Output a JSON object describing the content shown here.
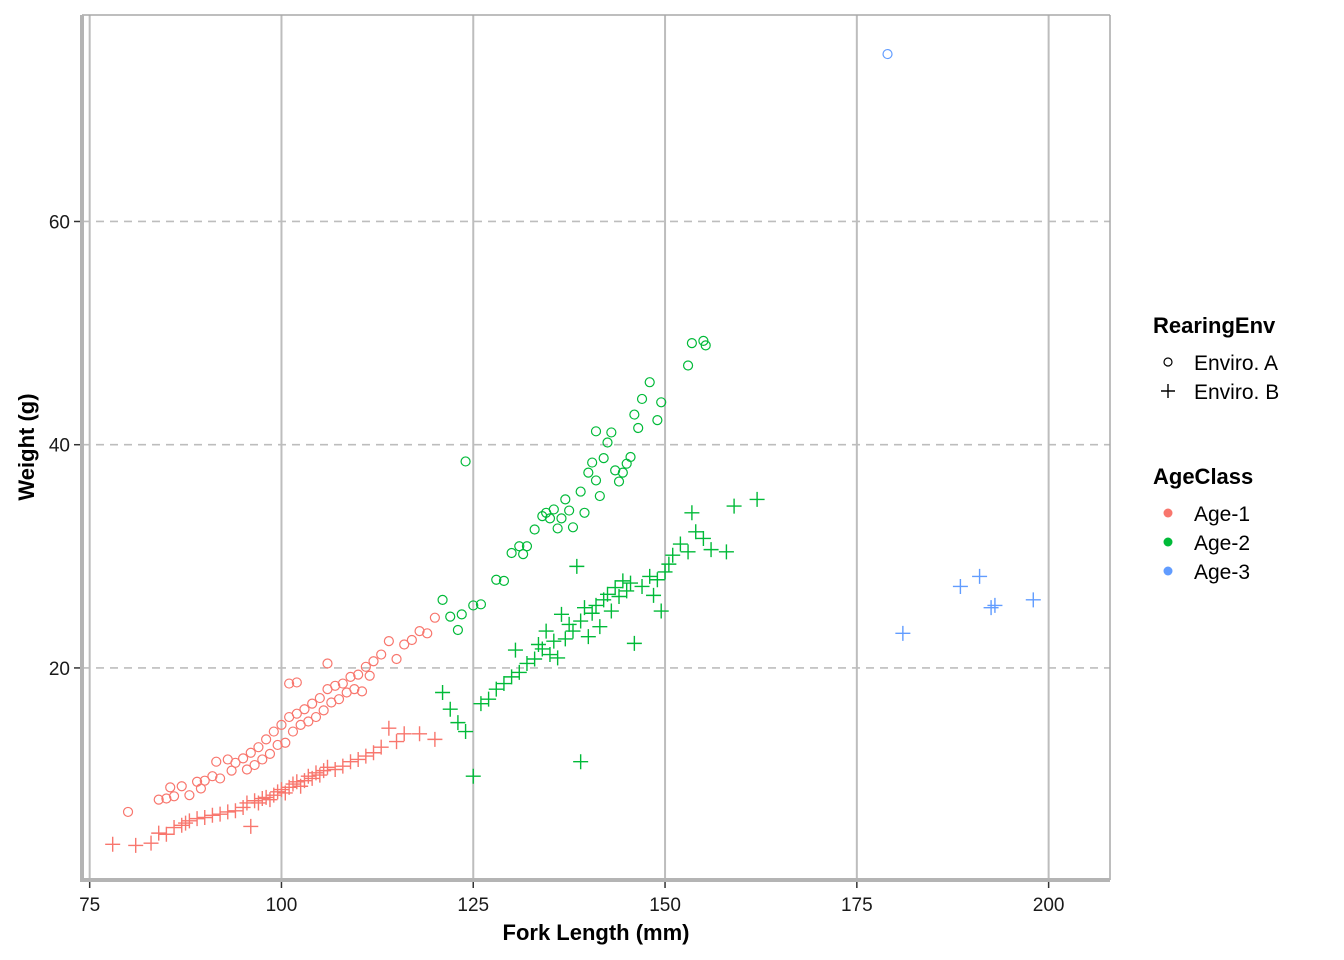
{
  "chart_data": {
    "type": "scatter",
    "title": "",
    "xlabel": "Fork Length (mm)",
    "ylabel": "Weight (g)",
    "xlim": [
      74,
      208
    ],
    "ylim": [
      1,
      78.5
    ],
    "x_ticks": [
      75,
      100,
      125,
      150,
      175,
      200
    ],
    "y_ticks": [
      20,
      40,
      60
    ],
    "grid": {
      "vertical": "solid",
      "horizontal": "dashed"
    },
    "legend_position": "right",
    "shape_legend": {
      "title": "RearingEnv",
      "items": [
        {
          "label": "Enviro. A",
          "shape": "circle"
        },
        {
          "label": "Enviro. B",
          "shape": "plus"
        }
      ]
    },
    "color_legend": {
      "title": "AgeClass",
      "items": [
        {
          "label": "Age-1",
          "color": "#F8766D"
        },
        {
          "label": "Age-2",
          "color": "#00BA38"
        },
        {
          "label": "Age-3",
          "color": "#619CFF"
        }
      ]
    },
    "series": [
      {
        "name": "Age-1",
        "env": "Enviro. A",
        "color": "#F8766D",
        "shape": "circle",
        "points": [
          [
            80,
            7.1
          ],
          [
            84,
            8.2
          ],
          [
            85,
            8.3
          ],
          [
            85.5,
            9.3
          ],
          [
            86,
            8.5
          ],
          [
            87,
            9.4
          ],
          [
            88,
            8.6
          ],
          [
            89,
            9.8
          ],
          [
            89.5,
            9.2
          ],
          [
            90,
            9.9
          ],
          [
            91,
            10.3
          ],
          [
            91.5,
            11.6
          ],
          [
            92,
            10.1
          ],
          [
            93,
            11.8
          ],
          [
            93.5,
            10.8
          ],
          [
            94,
            11.5
          ],
          [
            95,
            11.9
          ],
          [
            95.5,
            10.9
          ],
          [
            96,
            12.4
          ],
          [
            96.5,
            11.3
          ],
          [
            97,
            12.9
          ],
          [
            97.5,
            11.8
          ],
          [
            98,
            13.6
          ],
          [
            98.5,
            12.3
          ],
          [
            99,
            14.3
          ],
          [
            99.5,
            13.1
          ],
          [
            100,
            14.9
          ],
          [
            100.5,
            13.3
          ],
          [
            101,
            15.6
          ],
          [
            101,
            18.6
          ],
          [
            101.5,
            14.3
          ],
          [
            102,
            15.9
          ],
          [
            102,
            18.7
          ],
          [
            102.5,
            14.9
          ],
          [
            103,
            16.3
          ],
          [
            103.5,
            15.2
          ],
          [
            104,
            16.8
          ],
          [
            104.5,
            15.6
          ],
          [
            105,
            17.3
          ],
          [
            105.5,
            16.2
          ],
          [
            106,
            18.1
          ],
          [
            106,
            20.4
          ],
          [
            106.5,
            16.9
          ],
          [
            107,
            18.4
          ],
          [
            107.5,
            17.2
          ],
          [
            108,
            18.6
          ],
          [
            108.5,
            17.8
          ],
          [
            109,
            19.2
          ],
          [
            109.5,
            18.1
          ],
          [
            110,
            19.4
          ],
          [
            110.5,
            17.9
          ],
          [
            111,
            20.1
          ],
          [
            111.5,
            19.3
          ],
          [
            112,
            20.6
          ],
          [
            113,
            21.2
          ],
          [
            114,
            22.4
          ],
          [
            115,
            20.8
          ],
          [
            116,
            22.1
          ],
          [
            117,
            22.5
          ],
          [
            118,
            23.3
          ],
          [
            119,
            23.1
          ],
          [
            120,
            24.5
          ]
        ]
      },
      {
        "name": "Age-1",
        "env": "Enviro. B",
        "color": "#F8766D",
        "shape": "plus",
        "points": [
          [
            78,
            4.2
          ],
          [
            81,
            4.1
          ],
          [
            83,
            4.3
          ],
          [
            84,
            5.2
          ],
          [
            85,
            5.1
          ],
          [
            86,
            5.7
          ],
          [
            87,
            5.9
          ],
          [
            87.5,
            6.1
          ],
          [
            88,
            6.3
          ],
          [
            89,
            6.5
          ],
          [
            90,
            6.6
          ],
          [
            91,
            6.8
          ],
          [
            92,
            6.9
          ],
          [
            93,
            7.1
          ],
          [
            94,
            7.2
          ],
          [
            95,
            7.5
          ],
          [
            95.5,
            7.9
          ],
          [
            96,
            5.8
          ],
          [
            96.5,
            8.1
          ],
          [
            97,
            7.9
          ],
          [
            97.5,
            8.3
          ],
          [
            98,
            8.4
          ],
          [
            98.5,
            8.2
          ],
          [
            99,
            8.6
          ],
          [
            99.5,
            8.9
          ],
          [
            100,
            9.1
          ],
          [
            100.5,
            8.8
          ],
          [
            101,
            9.3
          ],
          [
            101.5,
            9.6
          ],
          [
            102,
            9.8
          ],
          [
            102.5,
            9.4
          ],
          [
            103,
            9.9
          ],
          [
            103.5,
            10.3
          ],
          [
            104,
            10.1
          ],
          [
            104.5,
            10.6
          ],
          [
            105,
            10.4
          ],
          [
            105.5,
            10.8
          ],
          [
            106,
            11.1
          ],
          [
            107,
            10.9
          ],
          [
            108,
            11.2
          ],
          [
            109,
            11.6
          ],
          [
            110,
            11.8
          ],
          [
            111,
            12.1
          ],
          [
            112,
            12.4
          ],
          [
            113,
            12.9
          ],
          [
            114,
            14.6
          ],
          [
            115,
            13.4
          ],
          [
            116,
            14.1
          ],
          [
            118,
            14.1
          ],
          [
            120,
            13.6
          ]
        ]
      },
      {
        "name": "Age-2",
        "env": "Enviro. A",
        "color": "#00BA38",
        "shape": "circle",
        "points": [
          [
            121,
            26.1
          ],
          [
            122,
            24.6
          ],
          [
            123,
            23.4
          ],
          [
            123.5,
            24.8
          ],
          [
            124,
            38.5
          ],
          [
            125,
            25.6
          ],
          [
            126,
            25.7
          ],
          [
            128,
            27.9
          ],
          [
            129,
            27.8
          ],
          [
            130,
            30.3
          ],
          [
            131,
            30.9
          ],
          [
            131.5,
            30.2
          ],
          [
            132,
            30.9
          ],
          [
            133,
            32.4
          ],
          [
            134,
            33.6
          ],
          [
            134.5,
            33.9
          ],
          [
            135,
            33.4
          ],
          [
            135.5,
            34.2
          ],
          [
            136,
            32.5
          ],
          [
            136.5,
            33.4
          ],
          [
            137,
            35.1
          ],
          [
            137.5,
            34.1
          ],
          [
            138,
            32.6
          ],
          [
            139,
            35.8
          ],
          [
            139.5,
            33.9
          ],
          [
            140,
            37.5
          ],
          [
            140.5,
            38.4
          ],
          [
            141,
            36.8
          ],
          [
            141,
            41.2
          ],
          [
            141.5,
            35.4
          ],
          [
            142,
            38.8
          ],
          [
            142.5,
            40.2
          ],
          [
            143,
            41.1
          ],
          [
            143.5,
            37.7
          ],
          [
            144,
            36.7
          ],
          [
            144.5,
            37.5
          ],
          [
            145,
            38.3
          ],
          [
            145.5,
            38.9
          ],
          [
            146,
            42.7
          ],
          [
            146.5,
            41.5
          ],
          [
            147,
            44.1
          ],
          [
            148,
            45.6
          ],
          [
            149,
            42.2
          ],
          [
            149.5,
            43.8
          ],
          [
            153,
            47.1
          ],
          [
            153.5,
            49.1
          ],
          [
            155,
            49.3
          ],
          [
            155.3,
            48.9
          ]
        ]
      },
      {
        "name": "Age-2",
        "env": "Enviro. B",
        "color": "#00BA38",
        "shape": "plus",
        "points": [
          [
            121,
            17.8
          ],
          [
            122,
            16.3
          ],
          [
            123,
            15.1
          ],
          [
            124,
            14.3
          ],
          [
            125,
            10.3
          ],
          [
            126,
            16.8
          ],
          [
            127,
            17.2
          ],
          [
            128,
            18.1
          ],
          [
            129,
            18.6
          ],
          [
            130,
            19.2
          ],
          [
            130.5,
            21.6
          ],
          [
            131,
            19.6
          ],
          [
            132,
            20.4
          ],
          [
            133,
            20.8
          ],
          [
            133.5,
            22.1
          ],
          [
            134,
            21.7
          ],
          [
            134.5,
            23.3
          ],
          [
            135,
            21.2
          ],
          [
            135.5,
            22.4
          ],
          [
            136,
            20.9
          ],
          [
            136.5,
            24.8
          ],
          [
            137,
            22.6
          ],
          [
            137.5,
            23.9
          ],
          [
            138,
            23.3
          ],
          [
            138.5,
            29.1
          ],
          [
            139,
            24.2
          ],
          [
            139,
            11.6
          ],
          [
            139.5,
            25.4
          ],
          [
            140,
            22.8
          ],
          [
            140.5,
            24.9
          ],
          [
            141,
            25.6
          ],
          [
            141.5,
            23.7
          ],
          [
            142,
            26.1
          ],
          [
            142.5,
            26.6
          ],
          [
            143,
            25.1
          ],
          [
            143.5,
            27.2
          ],
          [
            144,
            26.4
          ],
          [
            144.5,
            27.8
          ],
          [
            145,
            26.9
          ],
          [
            145.5,
            27.6
          ],
          [
            146,
            22.2
          ],
          [
            147,
            27.3
          ],
          [
            148,
            28.2
          ],
          [
            148.5,
            26.5
          ],
          [
            149,
            27.9
          ],
          [
            149.5,
            25.1
          ],
          [
            150,
            28.6
          ],
          [
            150.5,
            29.3
          ],
          [
            151,
            30.1
          ],
          [
            152,
            31.1
          ],
          [
            153,
            30.4
          ],
          [
            153.5,
            33.9
          ],
          [
            154,
            32.2
          ],
          [
            155,
            31.6
          ],
          [
            156,
            30.6
          ],
          [
            158,
            30.4
          ],
          [
            159,
            34.5
          ],
          [
            162,
            35.1
          ]
        ]
      },
      {
        "name": "Age-3",
        "env": "Enviro. A",
        "color": "#619CFF",
        "shape": "circle",
        "points": [
          [
            179,
            75.0
          ]
        ]
      },
      {
        "name": "Age-3",
        "env": "Enviro. B",
        "color": "#619CFF",
        "shape": "plus",
        "points": [
          [
            181,
            23.1
          ],
          [
            188.5,
            27.3
          ],
          [
            191,
            28.2
          ],
          [
            192.5,
            25.4
          ],
          [
            193,
            25.6
          ],
          [
            198,
            26.1
          ]
        ]
      }
    ]
  }
}
